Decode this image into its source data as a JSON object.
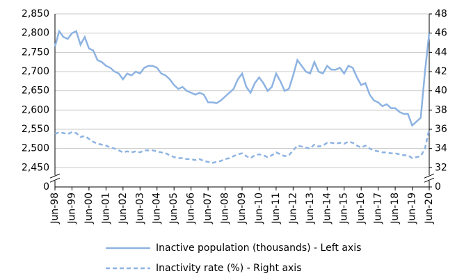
{
  "chart_data": {
    "type": "line",
    "categories": [
      "Jun-98",
      null,
      null,
      null,
      "Jun-99",
      null,
      null,
      null,
      "Jun-00",
      null,
      null,
      null,
      "Jun-01",
      null,
      null,
      null,
      "Jun-02",
      null,
      null,
      null,
      "Jun-03",
      null,
      null,
      null,
      "Jun-04",
      null,
      null,
      null,
      "Jun-05",
      null,
      null,
      null,
      "Jun-06",
      null,
      null,
      null,
      "Jun-07",
      null,
      null,
      null,
      "Jun-08",
      null,
      null,
      null,
      "Jun-09",
      null,
      null,
      null,
      "Jun-10",
      null,
      null,
      null,
      "Jun-11",
      null,
      null,
      null,
      "Jun-12",
      null,
      null,
      null,
      "Jun-13",
      null,
      null,
      null,
      "Jun-14",
      null,
      null,
      null,
      "Jun-15",
      null,
      null,
      null,
      "Jun-16",
      null,
      null,
      null,
      "Jun-17",
      null,
      null,
      null,
      "Jun-18",
      null,
      null,
      null,
      "Jun-19",
      null,
      null,
      null,
      "Jun-20"
    ],
    "series": [
      {
        "name": "Inactive population (thousands) - Left axis",
        "color": "#8db3e2",
        "dashed": false,
        "values": [
          2765,
          2805,
          2790,
          2785,
          2800,
          2805,
          2770,
          2790,
          2760,
          2755,
          2730,
          2725,
          2715,
          2710,
          2700,
          2695,
          2680,
          2695,
          2690,
          2700,
          2695,
          2710,
          2715,
          2715,
          2710,
          2695,
          2690,
          2680,
          2665,
          2655,
          2660,
          2650,
          2645,
          2640,
          2645,
          2640,
          2620,
          2620,
          2618,
          2625,
          2635,
          2645,
          2655,
          2680,
          2695,
          2660,
          2645,
          2670,
          2685,
          2670,
          2650,
          2660,
          2695,
          2675,
          2650,
          2655,
          2690,
          2730,
          2715,
          2700,
          2695,
          2725,
          2700,
          2695,
          2715,
          2705,
          2705,
          2710,
          2695,
          2715,
          2710,
          2685,
          2665,
          2670,
          2640,
          2625,
          2620,
          2610,
          2615,
          2605,
          2605,
          2595,
          2590,
          2590,
          2560,
          2570,
          2580,
          2700,
          2800
        ]
      },
      {
        "name": "Inactivity rate (%) - Right axis",
        "color": "#8db3e2",
        "dashed": true,
        "axis": "y2",
        "values": [
          35.5,
          35.7,
          35.6,
          35.5,
          35.7,
          35.6,
          35.2,
          35.3,
          35.0,
          34.7,
          34.5,
          34.4,
          34.3,
          34.1,
          34.0,
          33.8,
          33.6,
          33.7,
          33.6,
          33.7,
          33.6,
          33.8,
          33.8,
          33.8,
          33.7,
          33.6,
          33.5,
          33.3,
          33.1,
          33.0,
          33.0,
          32.9,
          32.9,
          32.8,
          32.9,
          32.7,
          32.6,
          32.5,
          32.6,
          32.7,
          32.9,
          33.0,
          33.2,
          33.4,
          33.5,
          33.2,
          33.0,
          33.3,
          33.4,
          33.3,
          33.1,
          33.3,
          33.6,
          33.4,
          33.2,
          33.3,
          33.8,
          34.3,
          34.2,
          34.1,
          34.0,
          34.4,
          34.2,
          34.3,
          34.6,
          34.6,
          34.5,
          34.6,
          34.5,
          34.7,
          34.6,
          34.3,
          34.1,
          34.3,
          34.0,
          33.8,
          33.7,
          33.6,
          33.6,
          33.5,
          33.5,
          33.4,
          33.3,
          33.3,
          33.0,
          33.1,
          33.2,
          34.0,
          36.0
        ]
      }
    ],
    "ylim": [
      0,
      2850
    ],
    "yticks": [
      {
        "value": 0,
        "label": "0"
      },
      {
        "value": 2450,
        "label": "2,450"
      },
      {
        "value": 2500,
        "label": "2,500"
      },
      {
        "value": 2550,
        "label": "2,550"
      },
      {
        "value": 2600,
        "label": "2,600"
      },
      {
        "value": 2650,
        "label": "2,650"
      },
      {
        "value": 2700,
        "label": "2,700"
      },
      {
        "value": 2750,
        "label": "2,750"
      },
      {
        "value": 2800,
        "label": "2,800"
      },
      {
        "value": 2850,
        "label": "2,850"
      }
    ],
    "y2lim": [
      0,
      48
    ],
    "y2ticks": [
      0,
      32,
      34,
      36,
      38,
      40,
      42,
      44,
      46,
      48
    ],
    "axis_break": true,
    "grid": true,
    "legend": "bottom"
  }
}
